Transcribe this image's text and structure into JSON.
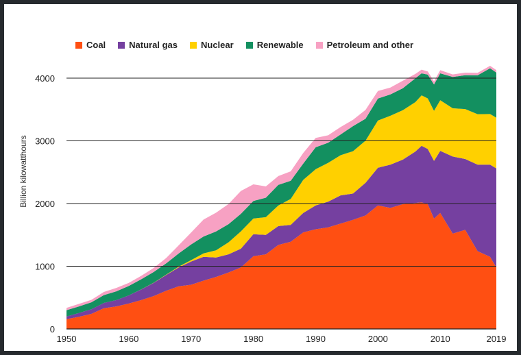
{
  "chart_data": {
    "type": "area",
    "stacked": true,
    "xlabel": "",
    "ylabel": "Billion kilowatthours",
    "ylim": [
      0,
      4000
    ],
    "yticks": [
      0,
      1000,
      2000,
      3000,
      4000
    ],
    "xticks": [
      "1950",
      "1960",
      "1970",
      "1980",
      "1990",
      "2000",
      "2010",
      "2019"
    ],
    "legend_position": "top",
    "x": [
      1950,
      1952,
      1954,
      1956,
      1958,
      1960,
      1962,
      1964,
      1966,
      1968,
      1970,
      1972,
      1974,
      1976,
      1978,
      1980,
      1982,
      1984,
      1986,
      1988,
      1990,
      1992,
      1994,
      1996,
      1998,
      2000,
      2002,
      2004,
      2006,
      2007,
      2008,
      2009,
      2010,
      2012,
      2014,
      2016,
      2018,
      2019
    ],
    "series": [
      {
        "name": "Coal",
        "color": "#ff4f12",
        "values": [
          155,
          195,
          240,
          330,
          360,
          405,
          460,
          525,
          610,
          680,
          705,
          770,
          830,
          900,
          980,
          1160,
          1190,
          1340,
          1390,
          1540,
          1590,
          1620,
          1680,
          1740,
          1810,
          1970,
          1930,
          1990,
          2010,
          2020,
          1990,
          1760,
          1850,
          1520,
          1580,
          1240,
          1150,
          980
        ]
      },
      {
        "name": "Natural gas",
        "color": "#7540a0",
        "values": [
          45,
          60,
          75,
          85,
          100,
          130,
          170,
          210,
          250,
          300,
          370,
          380,
          310,
          290,
          300,
          350,
          310,
          300,
          270,
          310,
          380,
          410,
          450,
          420,
          520,
          600,
          690,
          710,
          820,
          900,
          880,
          920,
          990,
          1230,
          1130,
          1380,
          1470,
          1580
        ]
      },
      {
        "name": "Nuclear",
        "color": "#ffd000",
        "values": [
          0,
          0,
          0,
          0,
          0,
          1,
          2,
          3,
          6,
          13,
          22,
          54,
          114,
          191,
          276,
          251,
          283,
          328,
          414,
          527,
          577,
          619,
          640,
          675,
          673,
          754,
          780,
          789,
          787,
          806,
          806,
          799,
          807,
          769,
          797,
          805,
          807,
          809
        ]
      },
      {
        "name": "Renewable",
        "color": "#139060",
        "values": [
          100,
          105,
          110,
          125,
          140,
          150,
          160,
          170,
          180,
          210,
          250,
          270,
          300,
          290,
          280,
          280,
          310,
          330,
          290,
          260,
          350,
          320,
          330,
          400,
          350,
          350,
          340,
          350,
          380,
          350,
          380,
          420,
          430,
          500,
          540,
          620,
          730,
          720
        ]
      },
      {
        "name": "Petroleum and other",
        "color": "#f7a1c3",
        "values": [
          35,
          40,
          40,
          50,
          55,
          50,
          55,
          65,
          85,
          130,
          190,
          270,
          300,
          320,
          365,
          265,
          180,
          140,
          150,
          170,
          150,
          120,
          120,
          100,
          140,
          120,
          110,
          120,
          70,
          60,
          50,
          50,
          50,
          40,
          40,
          40,
          40,
          40
        ]
      }
    ]
  }
}
